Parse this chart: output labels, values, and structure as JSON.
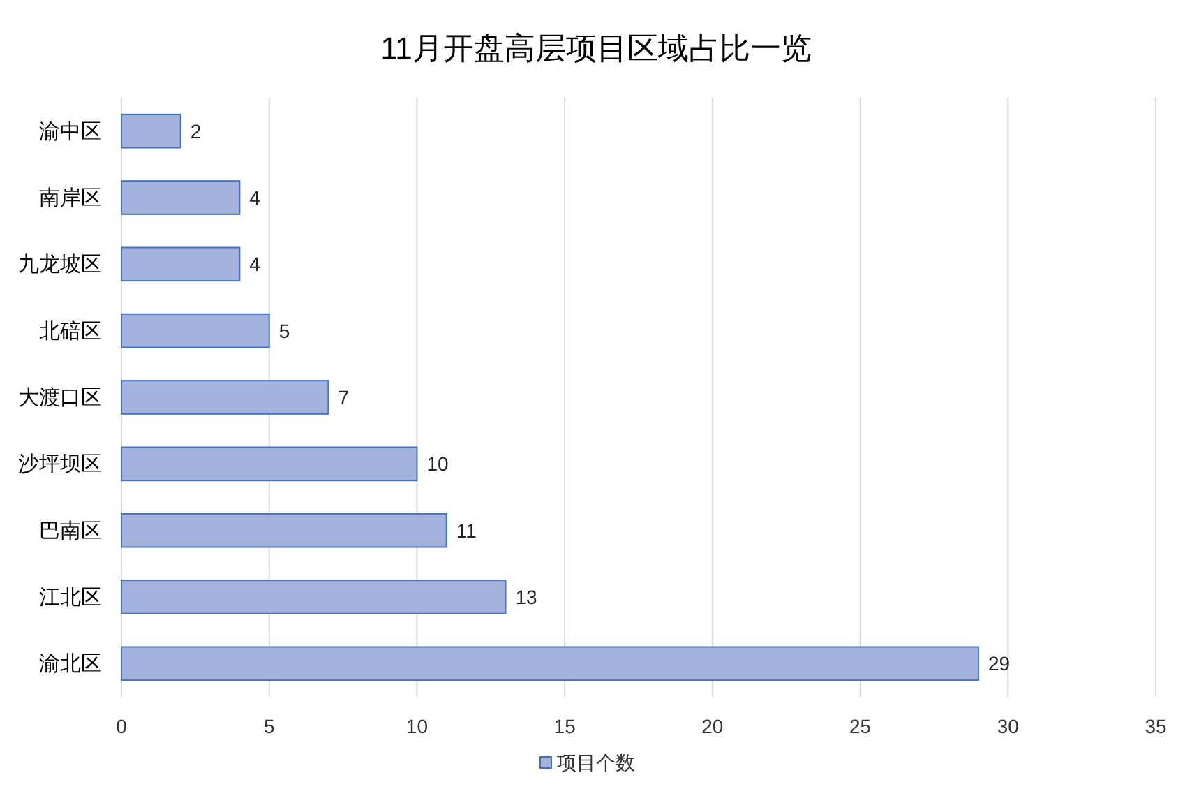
{
  "chart_data": {
    "type": "bar",
    "orientation": "horizontal",
    "title": "11月开盘高层项目区域占比一览",
    "categories": [
      "渝中区",
      "南岸区",
      "九龙坡区",
      "北碚区",
      "大渡口区",
      "沙坪坝区",
      "巴南区",
      "江北区",
      "渝北区"
    ],
    "series": [
      {
        "name": "项目个数",
        "color": "#a3b1dd",
        "values": [
          2,
          4,
          4,
          5,
          7,
          10,
          11,
          13,
          29
        ]
      }
    ],
    "xlim": [
      0,
      35
    ],
    "xticks": [
      0,
      5,
      10,
      15,
      20,
      25,
      30,
      35
    ],
    "grid": "x",
    "legend": "bottom",
    "data_labels": true
  }
}
